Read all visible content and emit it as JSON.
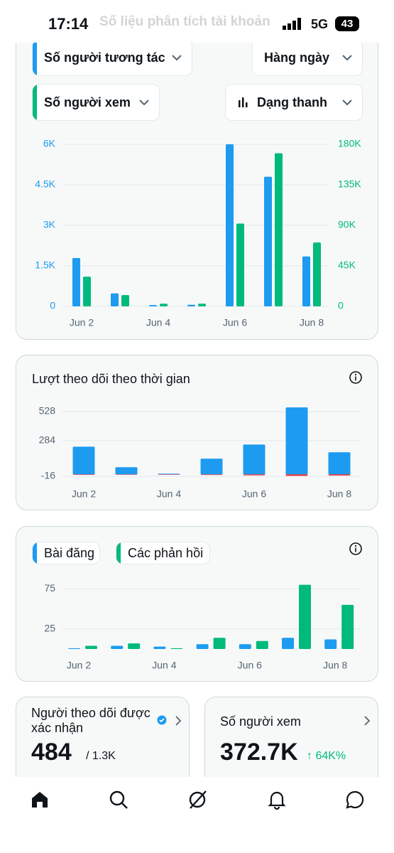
{
  "status_bar": {
    "time": "17:14",
    "network": "5G",
    "battery": "43"
  },
  "header": {
    "title": "Số liệu phân tích tài khoản"
  },
  "controls": {
    "period": "Hàng ngày",
    "style": "Dạng thanh"
  },
  "chart_data": [
    {
      "type": "bar",
      "categories": [
        "Jun 2",
        null,
        "Jun 4",
        null,
        "Jun 6",
        null,
        "Jun 8"
      ],
      "series": [
        {
          "name": "Số người tương tác",
          "color": "#1d9bf0",
          "values": [
            1790,
            480,
            50,
            60,
            6000,
            4800,
            1850
          ]
        },
        {
          "name": "Số người xem",
          "color": "#00ba7c",
          "axis": "y2",
          "values": [
            33000,
            12500,
            3000,
            3000,
            92000,
            170000,
            71000
          ]
        }
      ],
      "ylim": [
        0,
        6000
      ],
      "yticks": [
        0,
        {
          "value": 1500,
          "label": "1.5K"
        },
        {
          "value": 3000,
          "label": "3K"
        },
        {
          "value": 4500,
          "label": "4.5K"
        },
        {
          "value": 6000,
          "label": "6K"
        }
      ],
      "y2lim": [
        0,
        180000
      ],
      "y2ticks": [
        0,
        {
          "value": 45000,
          "label": "45K"
        },
        {
          "value": 90000,
          "label": "90K"
        },
        {
          "value": 135000,
          "label": "135K"
        },
        {
          "value": 180000,
          "label": "180K"
        }
      ],
      "grid": true
    },
    {
      "type": "bar",
      "title": "Lượt theo dõi theo thời gian",
      "categories": [
        "Jun 2",
        null,
        "Jun 4",
        null,
        "Jun 6",
        null,
        "Jun 8"
      ],
      "series": [
        {
          "color": "#1d9bf0",
          "values": [
            233,
            60,
            6,
            132,
            251,
            563,
            186
          ]
        },
        {
          "color": "#f4212e",
          "values": [
            -4,
            -2,
            -2,
            -5,
            -8,
            -12,
            -9
          ]
        }
      ],
      "ylim": [
        -16,
        564
      ],
      "yticks": [
        -16,
        284,
        528
      ],
      "grid": true
    },
    {
      "type": "bar",
      "categories": [
        "Jun 2",
        null,
        "Jun 4",
        null,
        "Jun 6",
        null,
        "Jun 8"
      ],
      "series": [
        {
          "name": "Bài đăng",
          "color": "#1d9bf0",
          "values": [
            1,
            4,
            3,
            6,
            6,
            14,
            12
          ]
        },
        {
          "name": "Các phản hồi",
          "color": "#00ba7c",
          "values": [
            4,
            7,
            1,
            14,
            10,
            80,
            55
          ]
        }
      ],
      "ylim": [
        0,
        85
      ],
      "yticks": [
        25,
        75
      ],
      "grid": true
    }
  ],
  "cards": [
    {
      "label": "Người theo dõi được xác nhận",
      "value": 484,
      "total": "/ 1.3K"
    },
    {
      "label": "Số người xem",
      "value": "372.7K",
      "change": "↑ 64K%"
    }
  ]
}
